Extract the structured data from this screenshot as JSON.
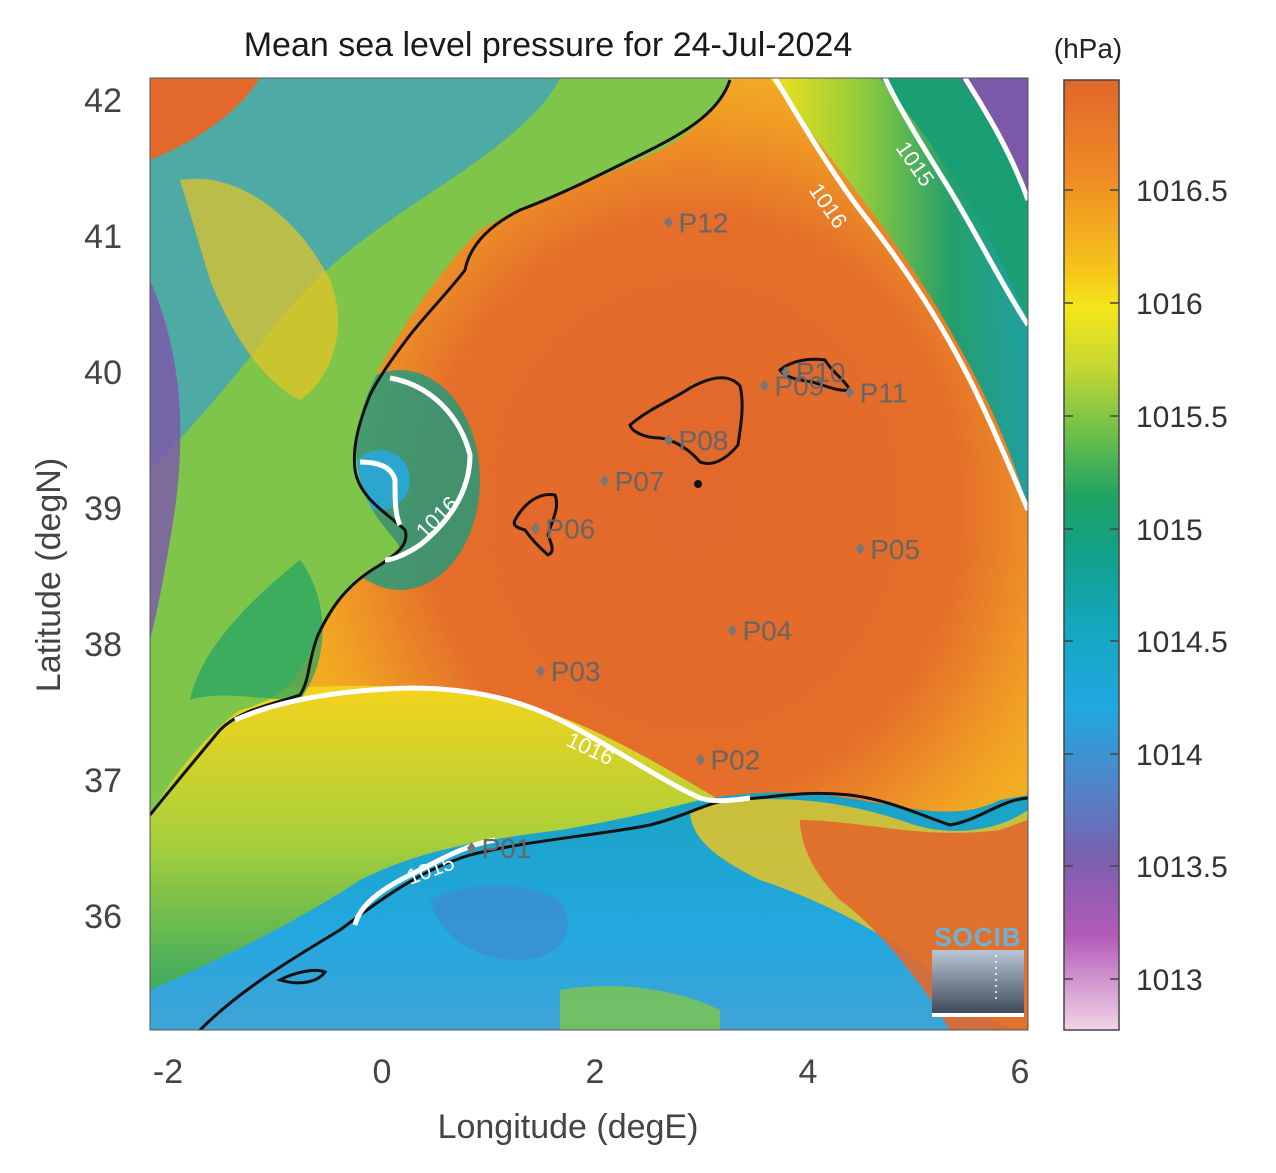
{
  "title": "Mean sea level pressure for 24-Jul-2024",
  "xlabel": "Longitude (degE)",
  "ylabel": "Latitude (degN)",
  "colorbar_unit": "(hPa)",
  "x_ticks": [
    "-2",
    "0",
    "2",
    "4",
    "6"
  ],
  "y_ticks": [
    "42",
    "41",
    "40",
    "39",
    "38",
    "37",
    "36"
  ],
  "colorbar_ticks": [
    "1016.5",
    "1016",
    "1015.5",
    "1015",
    "1014.5",
    "1014",
    "1013.5",
    "1013"
  ],
  "contour_labels": [
    "1016",
    "1015",
    "1016",
    "1016",
    "1015"
  ],
  "logo_text": "SOCIB",
  "points": [
    {
      "label": "P01",
      "lon": 0.85,
      "lat": 36.5
    },
    {
      "label": "P02",
      "lon": 3.0,
      "lat": 37.15
    },
    {
      "label": "P03",
      "lon": 1.5,
      "lat": 37.8
    },
    {
      "label": "P04",
      "lon": 3.3,
      "lat": 38.1
    },
    {
      "label": "P05",
      "lon": 4.5,
      "lat": 38.7
    },
    {
      "label": "P06",
      "lon": 1.45,
      "lat": 38.85
    },
    {
      "label": "P07",
      "lon": 2.1,
      "lat": 39.2
    },
    {
      "label": "P08",
      "lon": 2.7,
      "lat": 39.5
    },
    {
      "label": "P09",
      "lon": 3.6,
      "lat": 39.9
    },
    {
      "label": "P10",
      "lon": 3.8,
      "lat": 40.0
    },
    {
      "label": "P11",
      "lon": 4.4,
      "lat": 39.85
    },
    {
      "label": "P12",
      "lon": 2.7,
      "lat": 41.1
    }
  ],
  "colors": {
    "colorbar_top": "#e2672a",
    "colorbar_bottom": "#f0cfe0",
    "land_low": "#2fa6d8",
    "sea_high": "#e2682b",
    "contour": "#ffffff",
    "coastline": "#111111"
  }
}
